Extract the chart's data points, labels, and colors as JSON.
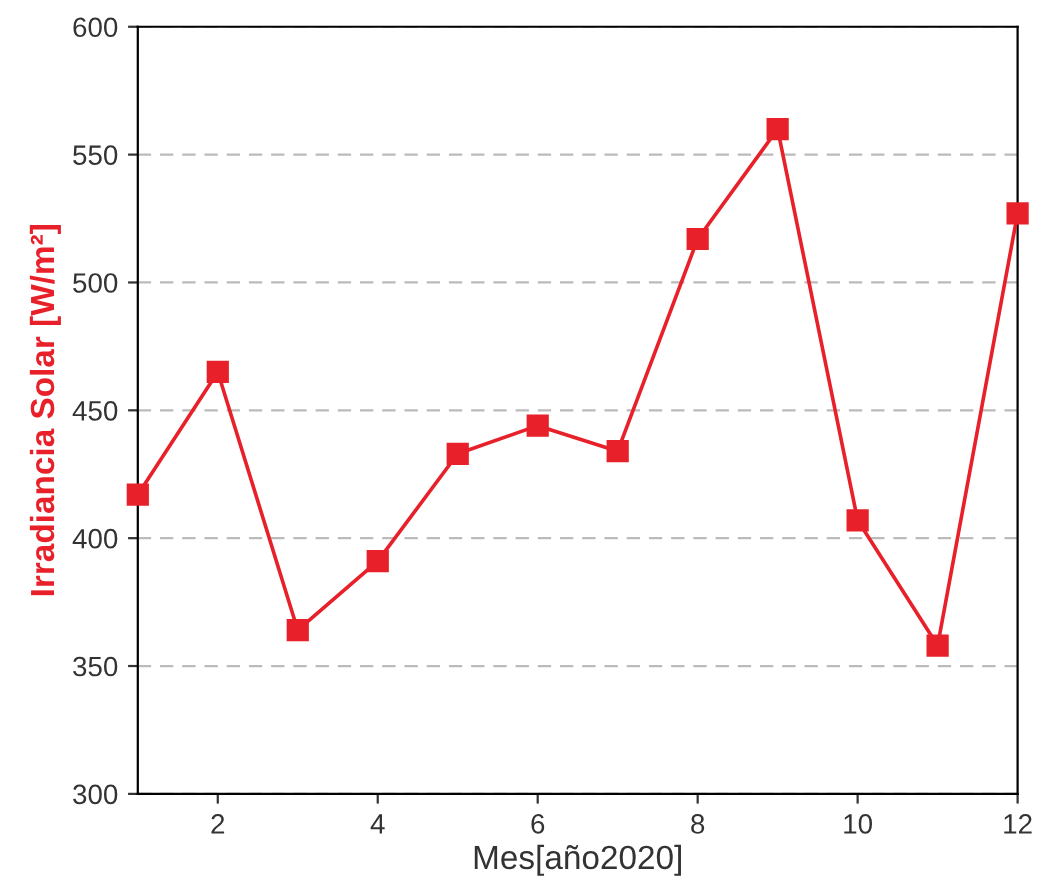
{
  "chart_data": {
    "type": "line",
    "xlabel": "Mes[año2020]",
    "ylabel": "Irradiancia Solar [W/m²]",
    "x": [
      1,
      2,
      3,
      4,
      5,
      6,
      7,
      8,
      9,
      10,
      11,
      12
    ],
    "series": [
      {
        "color": "#e8202a",
        "values": [
          417,
          465,
          364,
          391,
          433,
          444,
          434,
          517,
          560,
          407,
          358,
          527
        ]
      }
    ],
    "xlim": [
      1,
      12
    ],
    "xticks": [
      2,
      4,
      6,
      8,
      10,
      12
    ],
    "ylim": [
      300,
      600
    ],
    "yticks": [
      300,
      350,
      400,
      450,
      500,
      550,
      600
    ],
    "grid": "y",
    "marker": "square",
    "line_style": "solid"
  }
}
